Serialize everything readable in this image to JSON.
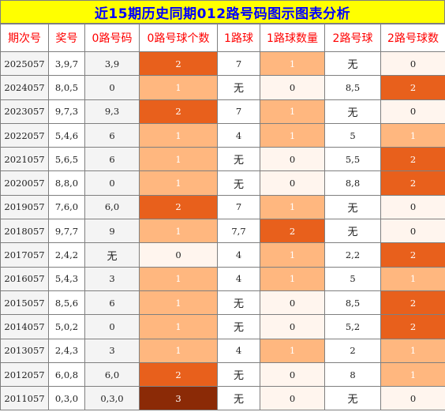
{
  "title": "近15期历史同期012路号码图示图表分析",
  "colors": {
    "title_bg": "#ffff00",
    "title_text": "#0000ff",
    "header_text": "#ff0000",
    "count_0": "#fff5ee",
    "count_1": "#ffb77f",
    "count_2": "#e8601c",
    "count_3": "#8b2a06"
  },
  "headers": [
    "期次号",
    "奖号",
    "0路号码",
    "0路号球个数",
    "1路球",
    "1路球数量",
    "2路号球",
    "2路号球数"
  ],
  "rows": [
    {
      "issue": "2025057",
      "prize": "3,9,7",
      "r0": "3,9",
      "r0n": "2",
      "r1": "7",
      "r1n": "1",
      "r2": "无",
      "r2n": "0"
    },
    {
      "issue": "2024057",
      "prize": "8,0,5",
      "r0": "0",
      "r0n": "1",
      "r1": "无",
      "r1n": "0",
      "r2": "8,5",
      "r2n": "2"
    },
    {
      "issue": "2023057",
      "prize": "9,7,3",
      "r0": "9,3",
      "r0n": "2",
      "r1": "7",
      "r1n": "1",
      "r2": "无",
      "r2n": "0"
    },
    {
      "issue": "2022057",
      "prize": "5,4,6",
      "r0": "6",
      "r0n": "1",
      "r1": "4",
      "r1n": "1",
      "r2": "5",
      "r2n": "1"
    },
    {
      "issue": "2021057",
      "prize": "5,6,5",
      "r0": "6",
      "r0n": "1",
      "r1": "无",
      "r1n": "0",
      "r2": "5,5",
      "r2n": "2"
    },
    {
      "issue": "2020057",
      "prize": "8,8,0",
      "r0": "0",
      "r0n": "1",
      "r1": "无",
      "r1n": "0",
      "r2": "8,8",
      "r2n": "2"
    },
    {
      "issue": "2019057",
      "prize": "7,6,0",
      "r0": "6,0",
      "r0n": "2",
      "r1": "7",
      "r1n": "1",
      "r2": "无",
      "r2n": "0"
    },
    {
      "issue": "2018057",
      "prize": "9,7,7",
      "r0": "9",
      "r0n": "1",
      "r1": "7,7",
      "r1n": "2",
      "r2": "无",
      "r2n": "0"
    },
    {
      "issue": "2017057",
      "prize": "2,4,2",
      "r0": "无",
      "r0n": "0",
      "r1": "4",
      "r1n": "1",
      "r2": "2,2",
      "r2n": "2"
    },
    {
      "issue": "2016057",
      "prize": "5,4,3",
      "r0": "3",
      "r0n": "1",
      "r1": "4",
      "r1n": "1",
      "r2": "5",
      "r2n": "1"
    },
    {
      "issue": "2015057",
      "prize": "8,5,6",
      "r0": "6",
      "r0n": "1",
      "r1": "无",
      "r1n": "0",
      "r2": "8,5",
      "r2n": "2"
    },
    {
      "issue": "2014057",
      "prize": "5,0,2",
      "r0": "0",
      "r0n": "1",
      "r1": "无",
      "r1n": "0",
      "r2": "5,2",
      "r2n": "2"
    },
    {
      "issue": "2013057",
      "prize": "2,4,3",
      "r0": "3",
      "r0n": "1",
      "r1": "4",
      "r1n": "1",
      "r2": "2",
      "r2n": "1"
    },
    {
      "issue": "2012057",
      "prize": "6,0,8",
      "r0": "6,0",
      "r0n": "2",
      "r1": "无",
      "r1n": "0",
      "r2": "8",
      "r2n": "1"
    },
    {
      "issue": "2011057",
      "prize": "0,3,0",
      "r0": "0,3,0",
      "r0n": "3",
      "r1": "无",
      "r1n": "0",
      "r2": "无",
      "r2n": "0"
    }
  ]
}
